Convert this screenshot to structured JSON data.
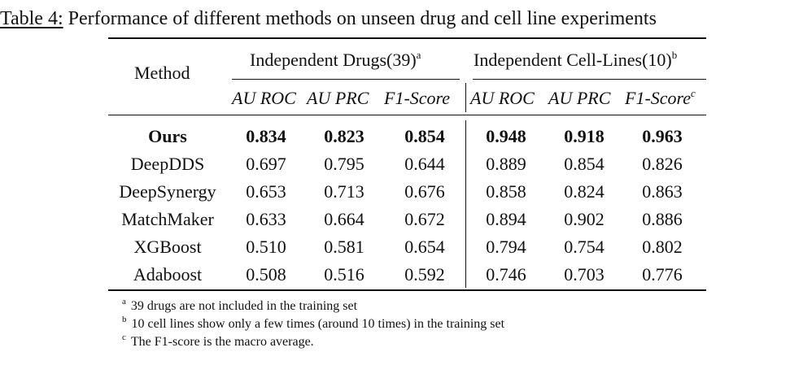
{
  "caption": {
    "label": "Table 4:",
    "text": "Performance of different methods on unseen drug and cell line experiments"
  },
  "header": {
    "method": "Method",
    "groups": [
      {
        "label": "Independent Drugs(39)",
        "mark": "a"
      },
      {
        "label": "Independent Cell-Lines(10)",
        "mark": "b"
      }
    ],
    "metrics": [
      "AU ROC",
      "AU PRC",
      "F1-Score",
      "AU ROC",
      "AU PRC",
      "F1-Score"
    ],
    "f1_mark": "c"
  },
  "rows": [
    {
      "method": "Ours",
      "values": [
        "0.834",
        "0.823",
        "0.854",
        "0.948",
        "0.918",
        "0.963"
      ],
      "bold": true
    },
    {
      "method": "DeepDDS",
      "values": [
        "0.697",
        "0.795",
        "0.644",
        "0.889",
        "0.854",
        "0.826"
      ],
      "bold": false
    },
    {
      "method": "DeepSynergy",
      "values": [
        "0.653",
        "0.713",
        "0.676",
        "0.858",
        "0.824",
        "0.863"
      ],
      "bold": false
    },
    {
      "method": "MatchMaker",
      "values": [
        "0.633",
        "0.664",
        "0.672",
        "0.894",
        "0.902",
        "0.886"
      ],
      "bold": false
    },
    {
      "method": "XGBoost",
      "values": [
        "0.510",
        "0.581",
        "0.654",
        "0.794",
        "0.754",
        "0.802"
      ],
      "bold": false
    },
    {
      "method": "Adaboost",
      "values": [
        "0.508",
        "0.516",
        "0.592",
        "0.746",
        "0.703",
        "0.776"
      ],
      "bold": false
    }
  ],
  "footnotes": [
    {
      "mark": "a",
      "text": "39 drugs are not included in the training set"
    },
    {
      "mark": "b",
      "text": "10 cell lines show only a few times (around 10 times) in the training set"
    },
    {
      "mark": "c",
      "text": "The F1-score is the macro average."
    }
  ]
}
